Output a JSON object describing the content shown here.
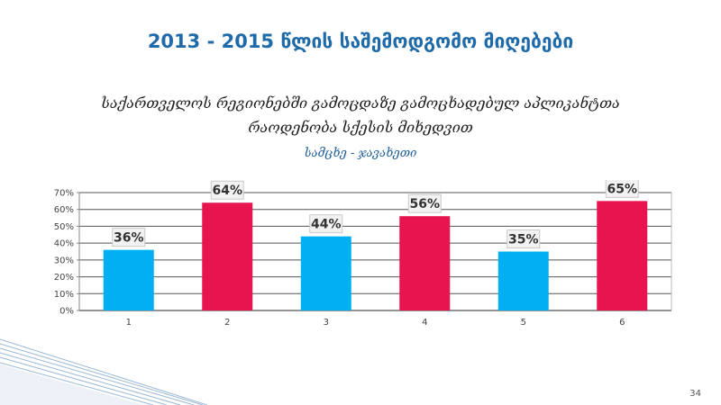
{
  "title": "2013 - 2015 წლის საშემოდგომო მიღებები",
  "subtitle_lines": [
    "საქართველოს რეგიონებში გამოცდაზე გამოცხადებულ აპლიკანტთა",
    "რაოდენობა სქესის მიხედვით"
  ],
  "region": "სამცხე - ჯავახეთი",
  "page_number": "34",
  "colors": {
    "title": "#1f6aa8",
    "blue": "#00b0f0",
    "pink": "#e8144f",
    "grid": "#555555",
    "label_bg": "#f2f2f2"
  },
  "chart_data": {
    "type": "bar",
    "categories": [
      "1",
      "2",
      "3",
      "4",
      "5",
      "6"
    ],
    "values": [
      36,
      64,
      44,
      56,
      35,
      65
    ],
    "data_labels": [
      "36%",
      "64%",
      "44%",
      "56%",
      "35%",
      "65%"
    ],
    "bar_colors": [
      "#00b0f0",
      "#e8144f",
      "#00b0f0",
      "#e8144f",
      "#00b0f0",
      "#e8144f"
    ],
    "yticks": [
      "0%",
      "10%",
      "20%",
      "30%",
      "40%",
      "50%",
      "60%",
      "70%"
    ],
    "ylim": [
      0,
      70
    ],
    "grid": true,
    "legend": "none"
  }
}
